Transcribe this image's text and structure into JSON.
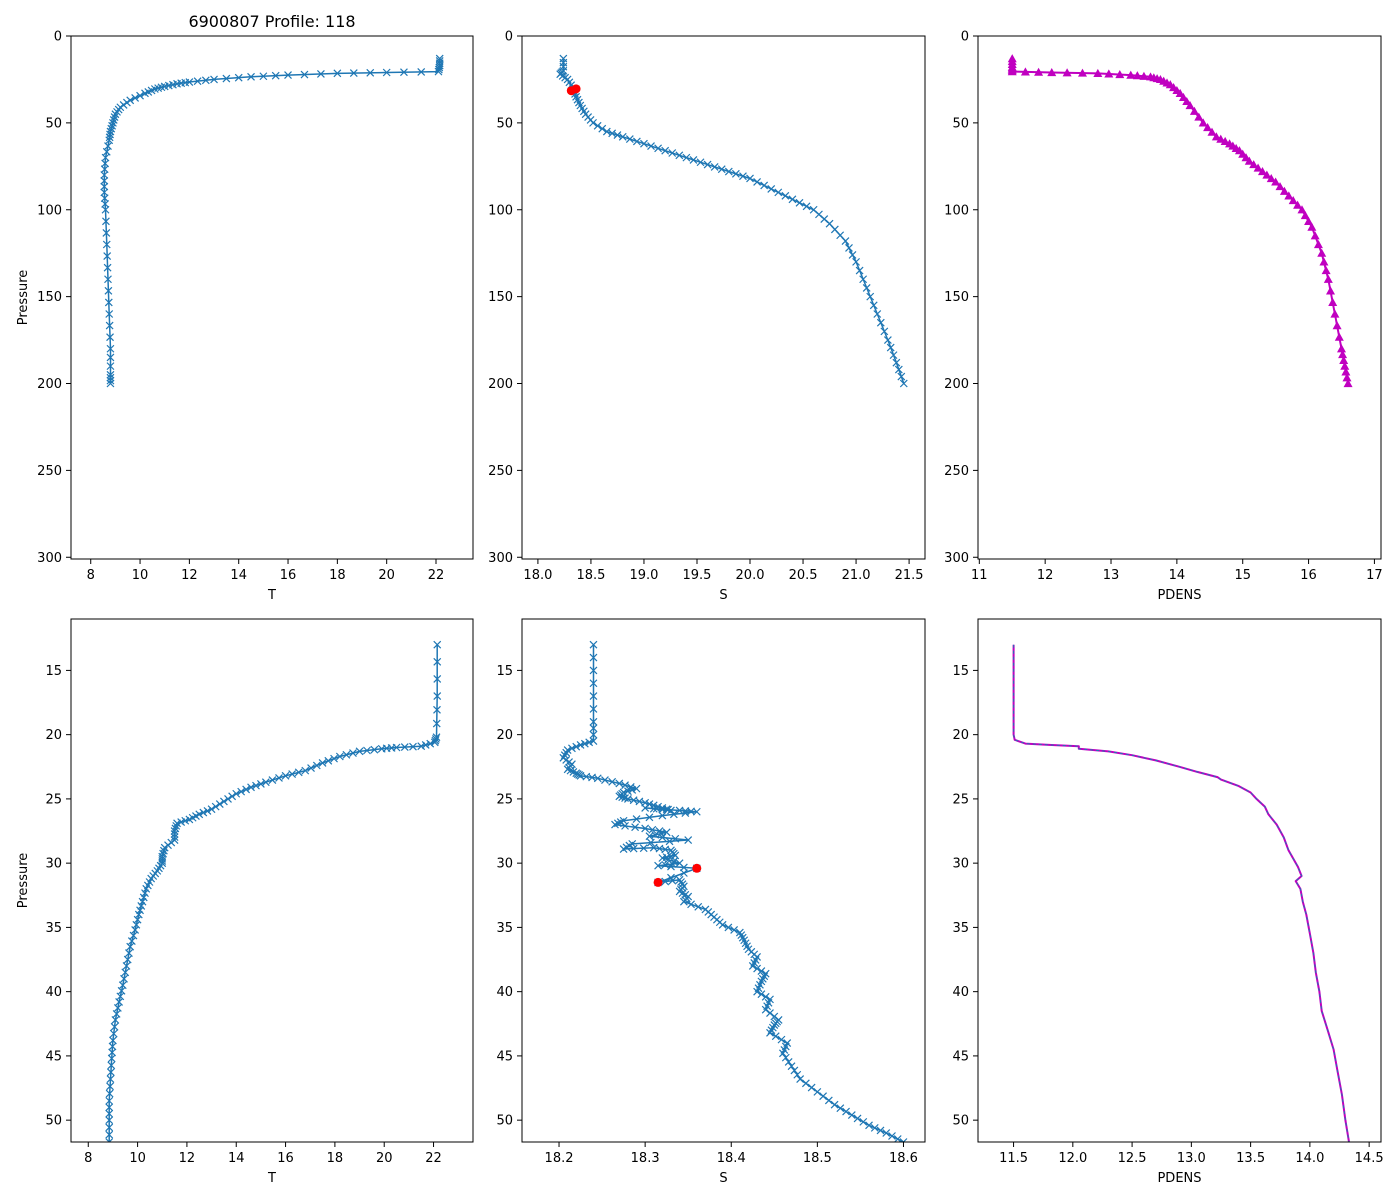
{
  "figure_title": "6900807 Profile: 118",
  "colors": {
    "series": "#1f77b4",
    "flag": "#ff0000",
    "density": "#c000c0",
    "density_dash": "#1f77b4"
  },
  "chart_data": [
    {
      "id": "top-t",
      "type": "line",
      "title": "6900807 Profile: 118",
      "xlabel": "T",
      "ylabel": "Pressure",
      "xlim": [
        7.2,
        23.5
      ],
      "ylim": [
        301,
        0
      ],
      "inverted_y": true,
      "xticks": [
        8,
        10,
        12,
        14,
        16,
        18,
        20,
        22
      ],
      "yticks": [
        0,
        50,
        100,
        150,
        200,
        250,
        300
      ],
      "marker": "x",
      "series": [
        {
          "name": "T",
          "x": [
            22.15,
            22.15,
            22.1,
            20,
            18,
            16,
            14.5,
            13,
            12,
            11.5,
            11,
            10.6,
            10.2,
            9.6,
            9.2,
            9.0,
            8.9,
            8.8,
            8.75,
            8.6,
            8.55,
            8.55,
            8.6,
            8.65,
            8.7,
            8.75,
            8.8,
            8.8,
            8.8
          ],
          "y": [
            13,
            17,
            20.5,
            21,
            21.5,
            22.5,
            23.5,
            25,
            26.5,
            27.5,
            29,
            30.5,
            33,
            37,
            41,
            45,
            50,
            55,
            60,
            70,
            80,
            90,
            100,
            120,
            140,
            160,
            180,
            195,
            200
          ]
        }
      ]
    },
    {
      "id": "top-s",
      "type": "line",
      "xlabel": "S",
      "ylabel": "",
      "xlim": [
        17.85,
        21.65
      ],
      "ylim": [
        301,
        0
      ],
      "inverted_y": true,
      "xticks": [
        18.0,
        18.5,
        19.0,
        19.5,
        20.0,
        20.5,
        21.0,
        21.5
      ],
      "xticklabels": [
        "18.0",
        "18.5",
        "19.0",
        "19.5",
        "20.0",
        "20.5",
        "21.0",
        "21.5"
      ],
      "yticks": [
        0,
        50,
        100,
        150,
        200,
        250,
        300
      ],
      "marker": "x",
      "series": [
        {
          "name": "S",
          "x": [
            18.24,
            18.24,
            18.21,
            18.28,
            18.33,
            18.36,
            18.4,
            18.45,
            18.52,
            18.65,
            18.8,
            19.0,
            19.2,
            19.4,
            19.6,
            19.8,
            20.0,
            20.2,
            20.4,
            20.6,
            20.75,
            20.9,
            21.0,
            21.1,
            21.2,
            21.3,
            21.38,
            21.45
          ],
          "y": [
            13,
            20,
            22,
            25,
            30,
            35,
            40,
            45,
            50,
            55,
            58,
            62,
            66,
            70,
            74,
            78,
            82,
            88,
            94,
            100,
            108,
            118,
            130,
            145,
            160,
            175,
            188,
            200
          ]
        }
      ],
      "flags": {
        "name": "flagged",
        "x": [
          18.36,
          18.315
        ],
        "y": [
          30.4,
          31.5
        ]
      }
    },
    {
      "id": "top-pdens",
      "type": "line",
      "xlabel": "PDENS",
      "ylabel": "",
      "xlim": [
        10.98,
        17.1
      ],
      "ylim": [
        301,
        0
      ],
      "inverted_y": true,
      "xticks": [
        11,
        12,
        13,
        14,
        15,
        16,
        17
      ],
      "yticks": [
        0,
        50,
        100,
        150,
        200,
        250,
        300
      ],
      "marker": "triangle",
      "series": [
        {
          "name": "PDENS",
          "x": [
            11.5,
            11.5,
            11.5,
            12.1,
            12.8,
            13.3,
            13.6,
            13.75,
            13.9,
            14.05,
            14.2,
            14.4,
            14.6,
            14.8,
            14.95,
            15.1,
            15.3,
            15.5,
            15.7,
            15.9,
            16.05,
            16.2,
            16.3,
            16.4,
            16.5,
            16.55,
            16.6
          ],
          "y": [
            13,
            18,
            20.5,
            21,
            21.5,
            22.5,
            23.5,
            25,
            28,
            33,
            40,
            50,
            58,
            62,
            66,
            72,
            78,
            84,
            92,
            100,
            110,
            125,
            140,
            160,
            180,
            190,
            200
          ]
        }
      ]
    },
    {
      "id": "bottom-t",
      "type": "line",
      "xlabel": "T",
      "ylabel": "Pressure",
      "xlim": [
        7.3,
        23.6
      ],
      "ylim": [
        51.7,
        11.0
      ],
      "inverted_y": true,
      "xticks": [
        8,
        10,
        12,
        14,
        16,
        18,
        20,
        22
      ],
      "yticks": [
        15,
        20,
        25,
        30,
        35,
        40,
        45,
        50
      ],
      "marker": "x",
      "series": [
        {
          "name": "T",
          "x": [
            22.15,
            22.15,
            22.12,
            22.05,
            21.5,
            20.5,
            19.9,
            19.0,
            18.2,
            17.5,
            16.8,
            16.0,
            15.2,
            14.6,
            14.0,
            13.5,
            13.0,
            12.5,
            12.1,
            11.6,
            11.5,
            11.5,
            11.1,
            11.0,
            11.0,
            10.8,
            10.55,
            10.35,
            10.2,
            10.05,
            9.9,
            9.7,
            9.55,
            9.4,
            9.25,
            9.1,
            9.0,
            8.95,
            8.9,
            8.85,
            8.85,
            8.85
          ],
          "y": [
            13,
            17,
            20.2,
            20.6,
            20.9,
            21.0,
            21.1,
            21.3,
            21.7,
            22.2,
            22.8,
            23.2,
            23.7,
            24.1,
            24.6,
            25.2,
            25.8,
            26.2,
            26.6,
            26.9,
            27.5,
            28.2,
            28.8,
            29.5,
            30.0,
            30.6,
            31.2,
            32.0,
            33.0,
            34.0,
            35.2,
            36.5,
            38.0,
            39.5,
            40.8,
            42.2,
            43.8,
            45.2,
            46.8,
            48.5,
            50.0,
            51.7
          ]
        }
      ]
    },
    {
      "id": "bottom-s",
      "type": "line",
      "xlabel": "S",
      "ylabel": "",
      "xlim": [
        18.157,
        18.625
      ],
      "ylim": [
        51.7,
        11.0
      ],
      "inverted_y": true,
      "xticks": [
        18.2,
        18.3,
        18.4,
        18.5,
        18.6
      ],
      "xticklabels": [
        "18.2",
        "18.3",
        "18.4",
        "18.5",
        "18.6"
      ],
      "yticks": [
        15,
        20,
        25,
        30,
        35,
        40,
        45,
        50
      ],
      "marker": "x",
      "series": [
        {
          "name": "S",
          "x": [
            18.24,
            18.24,
            18.24,
            18.24,
            18.225,
            18.21,
            18.205,
            18.215,
            18.21,
            18.22,
            18.225,
            18.245,
            18.27,
            18.29,
            18.275,
            18.27,
            18.28,
            18.3,
            18.315,
            18.33,
            18.3,
            18.34,
            18.36,
            18.32,
            18.275,
            18.265,
            18.3,
            18.325,
            18.305,
            18.35,
            18.285,
            18.275,
            18.31,
            18.33,
            18.335,
            18.32,
            18.34,
            18.315,
            18.36,
            18.315,
            18.34,
            18.345,
            18.34,
            18.35,
            18.345,
            18.37,
            18.38,
            18.39,
            18.41,
            18.415,
            18.42,
            18.43,
            18.425,
            18.44,
            18.435,
            18.43,
            18.445,
            18.44,
            18.455,
            18.45,
            18.445,
            18.465,
            18.46,
            18.47,
            18.48,
            18.5,
            18.52,
            18.54,
            18.56,
            18.58,
            18.6
          ],
          "y": [
            13,
            16,
            19,
            20.5,
            20.8,
            21.2,
            21.8,
            22.3,
            22.7,
            23.0,
            23.2,
            23.4,
            23.8,
            24.2,
            24.5,
            24.8,
            25.0,
            25.3,
            25.6,
            25.9,
            25.7,
            25.9,
            26.0,
            26.3,
            26.7,
            27.0,
            27.3,
            27.6,
            27.9,
            28.2,
            28.5,
            28.9,
            28.8,
            29.0,
            29.4,
            29.6,
            30.0,
            30.2,
            30.4,
            31.5,
            31.3,
            31.8,
            32.2,
            32.6,
            33.0,
            33.6,
            34.2,
            34.8,
            35.4,
            36.0,
            36.7,
            37.3,
            38.0,
            38.6,
            39.2,
            40.0,
            40.6,
            41.4,
            42.2,
            42.6,
            43.2,
            44.0,
            44.8,
            45.8,
            46.8,
            47.8,
            48.8,
            49.6,
            50.4,
            51.0,
            51.7
          ]
        }
      ],
      "flags": {
        "name": "flagged",
        "x": [
          18.36,
          18.315
        ],
        "y": [
          30.4,
          31.5
        ]
      }
    },
    {
      "id": "bottom-pdens",
      "type": "line",
      "xlabel": "PDENS",
      "ylabel": "",
      "xlim": [
        11.2,
        14.6
      ],
      "ylim": [
        51.7,
        11.0
      ],
      "inverted_y": true,
      "xticks": [
        11.5,
        12.0,
        12.5,
        13.0,
        13.5,
        14.0,
        14.5
      ],
      "xticklabels": [
        "11.5",
        "12.0",
        "12.5",
        "13.0",
        "13.5",
        "14.0",
        "14.5"
      ],
      "yticks": [
        15,
        20,
        25,
        30,
        35,
        40,
        45,
        50
      ],
      "marker": "none",
      "series": [
        {
          "name": "PDENS",
          "x": [
            11.5,
            11.5,
            11.51,
            11.6,
            11.8,
            12.05,
            12.05,
            12.3,
            12.5,
            12.7,
            12.9,
            13.05,
            13.22,
            13.25,
            13.4,
            13.5,
            13.55,
            13.62,
            13.65,
            13.72,
            13.78,
            13.82,
            13.9,
            13.93,
            13.88,
            13.92,
            13.94,
            13.97,
            14.0,
            14.03,
            14.05,
            14.08,
            14.1,
            14.15,
            14.2,
            14.23,
            14.27,
            14.3,
            14.33
          ],
          "y": [
            13,
            20,
            20.4,
            20.7,
            20.8,
            20.9,
            21.1,
            21.3,
            21.6,
            22.0,
            22.5,
            22.9,
            23.3,
            23.5,
            24.0,
            24.5,
            25.0,
            25.6,
            26.2,
            27.0,
            28.0,
            29.0,
            30.3,
            31.0,
            31.4,
            32.0,
            33.0,
            34.0,
            35.5,
            37.0,
            38.5,
            40.0,
            41.5,
            43.0,
            44.5,
            46.0,
            48.0,
            50.0,
            51.7
          ]
        }
      ]
    }
  ]
}
